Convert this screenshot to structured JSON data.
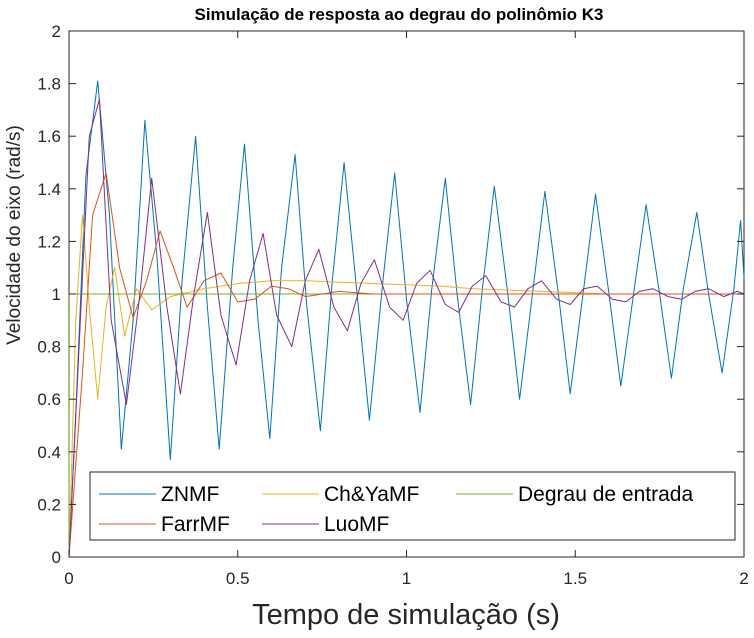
{
  "chart_data": {
    "type": "line",
    "title": "Simulação de resposta ao degrau do polinômio K3",
    "xlabel": "Tempo de simulação (s)",
    "ylabel": "Velocidade do eixo (rad/s)",
    "xlim": [
      0,
      2
    ],
    "ylim": [
      0,
      2
    ],
    "xticks": [
      0,
      0.5,
      1,
      1.5,
      2
    ],
    "xtick_labels": [
      "0",
      "0.5",
      "1",
      "1.5",
      "2"
    ],
    "yticks": [
      0,
      0.2,
      0.4,
      0.6,
      0.8,
      1,
      1.2,
      1.4,
      1.6,
      1.8,
      2
    ],
    "ytick_labels": [
      "0",
      "0.2",
      "0.4",
      "0.6",
      "0.8",
      "1",
      "1.2",
      "1.4",
      "1.6",
      "1.8",
      "2"
    ],
    "grid": false,
    "legend_position": "bottom",
    "series": [
      {
        "name": "ZNMF",
        "color": "#0072BD",
        "points": [
          [
            0,
            0
          ],
          [
            0.02,
            0.55
          ],
          [
            0.05,
            1.45
          ],
          [
            0.085,
            1.81
          ],
          [
            0.12,
            1.3
          ],
          [
            0.155,
            0.41
          ],
          [
            0.19,
            0.9
          ],
          [
            0.225,
            1.66
          ],
          [
            0.26,
            1.15
          ],
          [
            0.3,
            0.37
          ],
          [
            0.335,
            1.05
          ],
          [
            0.375,
            1.6
          ],
          [
            0.41,
            0.95
          ],
          [
            0.445,
            0.41
          ],
          [
            0.485,
            1.1
          ],
          [
            0.52,
            1.57
          ],
          [
            0.56,
            0.9
          ],
          [
            0.595,
            0.45
          ],
          [
            0.63,
            1.1
          ],
          [
            0.67,
            1.53
          ],
          [
            0.705,
            0.95
          ],
          [
            0.745,
            0.48
          ],
          [
            0.78,
            1.05
          ],
          [
            0.815,
            1.5
          ],
          [
            0.855,
            0.98
          ],
          [
            0.89,
            0.52
          ],
          [
            0.93,
            1.05
          ],
          [
            0.965,
            1.46
          ],
          [
            1.0,
            0.98
          ],
          [
            1.04,
            0.55
          ],
          [
            1.075,
            1.02
          ],
          [
            1.115,
            1.44
          ],
          [
            1.15,
            1.0
          ],
          [
            1.19,
            0.58
          ],
          [
            1.225,
            1.02
          ],
          [
            1.26,
            1.41
          ],
          [
            1.3,
            1.0
          ],
          [
            1.335,
            0.6
          ],
          [
            1.375,
            1.02
          ],
          [
            1.41,
            1.39
          ],
          [
            1.45,
            1.0
          ],
          [
            1.485,
            0.62
          ],
          [
            1.525,
            1.02
          ],
          [
            1.56,
            1.38
          ],
          [
            1.6,
            1.0
          ],
          [
            1.635,
            0.65
          ],
          [
            1.675,
            1.02
          ],
          [
            1.71,
            1.34
          ],
          [
            1.75,
            1.0
          ],
          [
            1.785,
            0.68
          ],
          [
            1.82,
            1.02
          ],
          [
            1.86,
            1.31
          ],
          [
            1.895,
            1.0
          ],
          [
            1.935,
            0.7
          ],
          [
            1.97,
            1.02
          ],
          [
            1.99,
            1.28
          ],
          [
            2.0,
            1.06
          ]
        ]
      },
      {
        "name": "Ch&YaMF",
        "color": "#EDB120",
        "points": [
          [
            0,
            0
          ],
          [
            0.02,
            0.9
          ],
          [
            0.04,
            1.3
          ],
          [
            0.06,
            0.95
          ],
          [
            0.085,
            0.6
          ],
          [
            0.11,
            0.95
          ],
          [
            0.135,
            1.1
          ],
          [
            0.165,
            0.84
          ],
          [
            0.2,
            1.02
          ],
          [
            0.245,
            0.94
          ],
          [
            0.3,
            0.99
          ],
          [
            0.4,
            1.02
          ],
          [
            0.5,
            1.04
          ],
          [
            0.6,
            1.05
          ],
          [
            0.7,
            1.05
          ],
          [
            0.8,
            1.045
          ],
          [
            0.9,
            1.04
          ],
          [
            1.0,
            1.035
          ],
          [
            1.1,
            1.03
          ],
          [
            1.2,
            1.02
          ],
          [
            1.3,
            1.015
          ],
          [
            1.4,
            1.01
          ],
          [
            1.5,
            1.005
          ],
          [
            1.6,
            1.0
          ],
          [
            1.8,
            1.0
          ],
          [
            2.0,
            1.0
          ]
        ]
      },
      {
        "name": "Degrau de entrada",
        "color": "#77AC30",
        "points": [
          [
            0,
            0
          ],
          [
            0.001,
            1
          ],
          [
            2,
            1
          ]
        ]
      },
      {
        "name": "FarrMF",
        "color": "#D95319",
        "points": [
          [
            0,
            0
          ],
          [
            0.04,
            0.7
          ],
          [
            0.07,
            1.3
          ],
          [
            0.11,
            1.46
          ],
          [
            0.15,
            1.1
          ],
          [
            0.19,
            0.91
          ],
          [
            0.23,
            1.05
          ],
          [
            0.27,
            1.24
          ],
          [
            0.31,
            1.1
          ],
          [
            0.35,
            0.95
          ],
          [
            0.4,
            1.05
          ],
          [
            0.45,
            1.08
          ],
          [
            0.5,
            0.97
          ],
          [
            0.55,
            0.98
          ],
          [
            0.6,
            1.03
          ],
          [
            0.65,
            1.02
          ],
          [
            0.7,
            0.99
          ],
          [
            0.8,
            1.01
          ],
          [
            0.9,
            1.0
          ],
          [
            1.0,
            1.0
          ],
          [
            2.0,
            1.0
          ]
        ]
      },
      {
        "name": "LuoMF",
        "color": "#7E2F8E",
        "points": [
          [
            0,
            0
          ],
          [
            0.03,
            0.8
          ],
          [
            0.06,
            1.6
          ],
          [
            0.09,
            1.74
          ],
          [
            0.125,
            0.9
          ],
          [
            0.17,
            0.58
          ],
          [
            0.21,
            1.0
          ],
          [
            0.245,
            1.44
          ],
          [
            0.29,
            0.95
          ],
          [
            0.33,
            0.62
          ],
          [
            0.37,
            1.0
          ],
          [
            0.41,
            1.31
          ],
          [
            0.45,
            0.92
          ],
          [
            0.495,
            0.73
          ],
          [
            0.535,
            1.05
          ],
          [
            0.575,
            1.23
          ],
          [
            0.615,
            0.92
          ],
          [
            0.66,
            0.8
          ],
          [
            0.7,
            1.05
          ],
          [
            0.74,
            1.17
          ],
          [
            0.785,
            0.95
          ],
          [
            0.825,
            0.86
          ],
          [
            0.865,
            1.04
          ],
          [
            0.905,
            1.13
          ],
          [
            0.95,
            0.95
          ],
          [
            0.99,
            0.9
          ],
          [
            1.03,
            1.04
          ],
          [
            1.07,
            1.09
          ],
          [
            1.115,
            0.96
          ],
          [
            1.155,
            0.93
          ],
          [
            1.195,
            1.03
          ],
          [
            1.235,
            1.07
          ],
          [
            1.28,
            0.97
          ],
          [
            1.32,
            0.95
          ],
          [
            1.36,
            1.02
          ],
          [
            1.4,
            1.05
          ],
          [
            1.445,
            0.98
          ],
          [
            1.485,
            0.96
          ],
          [
            1.525,
            1.02
          ],
          [
            1.565,
            1.03
          ],
          [
            1.61,
            0.98
          ],
          [
            1.65,
            0.97
          ],
          [
            1.69,
            1.01
          ],
          [
            1.73,
            1.02
          ],
          [
            1.775,
            0.99
          ],
          [
            1.815,
            0.98
          ],
          [
            1.855,
            1.01
          ],
          [
            1.895,
            1.02
          ],
          [
            1.94,
            0.99
          ],
          [
            1.98,
            1.01
          ],
          [
            2.0,
            1.0
          ]
        ]
      }
    ]
  }
}
